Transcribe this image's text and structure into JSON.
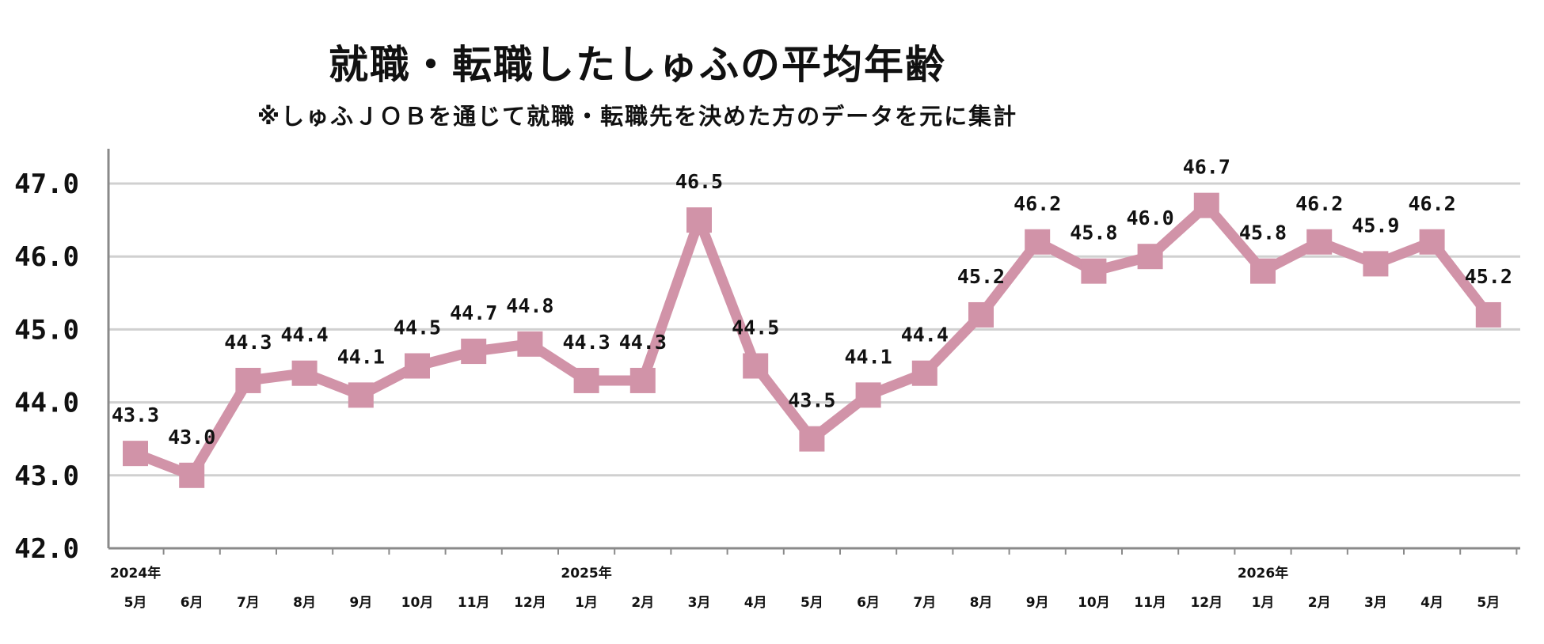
{
  "chart_data": {
    "type": "line",
    "title": "就職・転職したしゅふの平均年齢",
    "subtitle": "※しゅふＪＯＢを通じて就職・転職先を決めた方のデータを元に集計",
    "ylim": [
      42.0,
      47.0
    ],
    "yticks": [
      "42.0",
      "43.0",
      "44.0",
      "45.0",
      "46.0",
      "47.0"
    ],
    "grid": true,
    "line_color": "#d193a8",
    "years": [
      {
        "label": "2024年",
        "index": 0
      },
      {
        "label": "2025年",
        "index": 8
      },
      {
        "label": "2026年",
        "index": 20
      }
    ],
    "categories": [
      "5月",
      "6月",
      "7月",
      "8月",
      "9月",
      "10月",
      "11月",
      "12月",
      "1月",
      "2月",
      "3月",
      "4月",
      "5月",
      "6月",
      "7月",
      "8月",
      "9月",
      "10月",
      "11月",
      "12月",
      "1月",
      "2月",
      "3月",
      "4月",
      "5月"
    ],
    "values": [
      43.3,
      43.0,
      44.3,
      44.4,
      44.1,
      44.5,
      44.7,
      44.8,
      44.3,
      44.3,
      46.5,
      44.5,
      43.5,
      44.1,
      44.4,
      45.2,
      46.2,
      45.8,
      46.0,
      46.7,
      45.8,
      46.2,
      45.9,
      46.2,
      45.2
    ],
    "labels": [
      "43.3",
      "43.0",
      "44.3",
      "44.4",
      "44.1",
      "44.5",
      "44.7",
      "44.8",
      "44.3",
      "44.3",
      "46.5",
      "44.5",
      "43.5",
      "44.1",
      "44.4",
      "45.2",
      "46.2",
      "45.8",
      "46.0",
      "46.7",
      "45.8",
      "46.2",
      "45.9",
      "46.2",
      "45.2"
    ]
  }
}
